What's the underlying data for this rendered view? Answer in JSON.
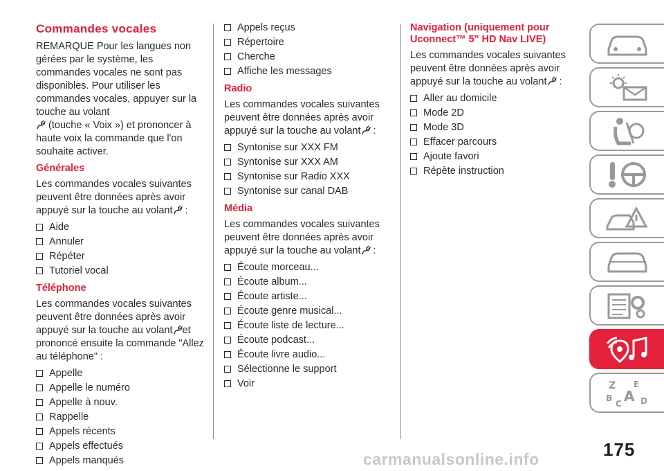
{
  "col1": {
    "title": "Commandes vocales",
    "remark_a": "REMARQUE Pour les langues non gérées par le système, les commandes vocales ne sont pas disponibles. Pour utiliser les commandes vocales, appuyer sur la touche au volant",
    "remark_b": "(touche « Voix ») et prononcer à haute voix la commande que l'on souhaite activer.",
    "generales": {
      "heading": "Générales",
      "intro": "Les commandes vocales suivantes peuvent être données après avoir appuyé sur la touche au volant",
      "intro_end": " :",
      "items": [
        "Aide",
        "Annuler",
        "Répéter",
        "Tutoriel vocal"
      ]
    },
    "telephone": {
      "heading": "Téléphone",
      "intro": "Les commandes vocales suivantes peuvent être données après avoir appuyé sur la touche au volant",
      "intro_end": "et prononcé ensuite la commande \"Allez au téléphone\" :",
      "items": [
        "Appelle",
        "Appelle le numéro",
        "Appelle à nouv.",
        "Rappelle",
        "Appels récents",
        "Appels effectués",
        "Appels manqués"
      ]
    }
  },
  "col2": {
    "telephone_items": [
      "Appels reçus",
      "Répertoire",
      "Cherche",
      "Affiche les messages"
    ],
    "radio": {
      "heading": "Radio",
      "intro": "Les commandes vocales suivantes peuvent être données après avoir appuyé sur la touche au volant",
      "intro_end": " :",
      "items": [
        "Syntonise sur XXX FM",
        "Syntonise sur XXX AM",
        "Syntonise sur Radio XXX",
        "Syntonise sur canal DAB"
      ]
    },
    "media": {
      "heading": "Média",
      "intro": "Les commandes vocales suivantes peuvent être données après avoir appuyé sur la touche au volant",
      "intro_end": " :",
      "items": [
        "Écoute morceau...",
        "Écoute album...",
        "Écoute artiste...",
        "Écoute genre musical...",
        "Écoute liste de lecture...",
        "Écoute podcast...",
        "Écoute livre audio...",
        "Sélectionne le support",
        "Voir"
      ]
    }
  },
  "col3": {
    "navigation": {
      "heading": "Navigation (uniquement pour Uconnect™ 5\" HD Nav LIVE)",
      "intro": "Les commandes vocales suivantes peuvent être données après avoir appuyé sur la touche au volant",
      "intro_end": " :",
      "items": [
        "Aller au domicile",
        "Mode 2D",
        "Mode 3D",
        "Effacer parcours",
        "Ajoute favori",
        "Répète instruction"
      ]
    }
  },
  "page_number": "175",
  "watermark": "carmanualsonline.info",
  "colors": {
    "accent": "#e5203a",
    "tab_border": "#999999"
  },
  "icons": [
    "steering-voice-icon",
    "checkbox-bullet-icon"
  ],
  "tabs": [
    {
      "icon": "car-dashboard-icon"
    },
    {
      "icon": "warning-lights-message-icon"
    },
    {
      "icon": "seat-safety-icon"
    },
    {
      "icon": "key-steering-icon"
    },
    {
      "icon": "car-accident-icon"
    },
    {
      "icon": "car-service-icon"
    },
    {
      "icon": "technical-data-icon"
    },
    {
      "icon": "multimedia-icon",
      "active": true
    },
    {
      "icon": "alphabetical-index-icon"
    }
  ]
}
